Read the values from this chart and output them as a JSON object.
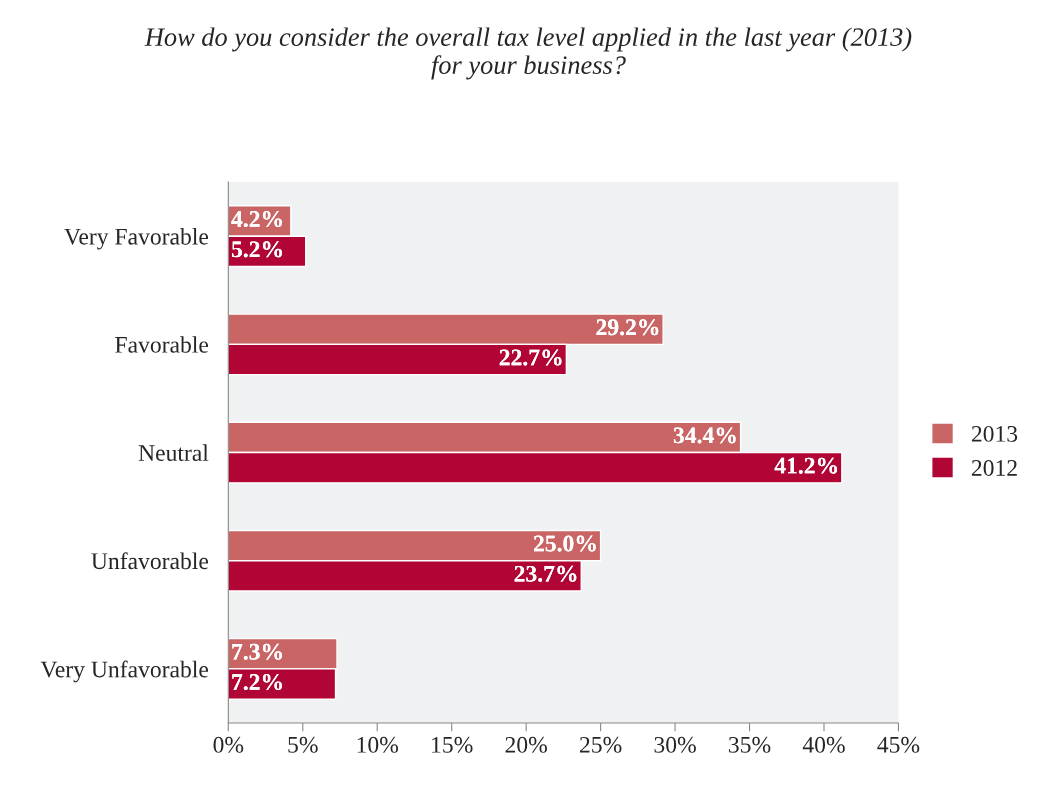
{
  "chart_data": {
    "type": "bar",
    "orientation": "horizontal",
    "title": "How do you consider the overall tax level applied in the last year (2013)\nfor your business?",
    "categories": [
      "Very Favorable",
      "Favorable",
      "Neutral",
      "Unfavorable",
      "Very Unfavorable"
    ],
    "series": [
      {
        "name": "2013",
        "color": "#c96565",
        "values": [
          4.2,
          29.2,
          34.4,
          25.0,
          7.3
        ],
        "value_labels": [
          "4.2%",
          "29.2%",
          "34.4%",
          "25.0%",
          "7.3%"
        ]
      },
      {
        "name": "2012",
        "color": "#b00535",
        "values": [
          5.2,
          22.7,
          41.2,
          23.7,
          7.2
        ],
        "value_labels": [
          "5.2%",
          "22.7%",
          "41.2%",
          "23.7%",
          "7.2%"
        ]
      }
    ],
    "xlim": [
      0,
      45
    ],
    "xticks": [
      {
        "value": 0,
        "label": "0%"
      },
      {
        "value": 5,
        "label": "5%"
      },
      {
        "value": 10,
        "label": "10%"
      },
      {
        "value": 15,
        "label": "15%"
      },
      {
        "value": 20,
        "label": "20%"
      },
      {
        "value": 25,
        "label": "25%"
      },
      {
        "value": 30,
        "label": "30%"
      },
      {
        "value": 35,
        "label": "35%"
      },
      {
        "value": 40,
        "label": "40%"
      },
      {
        "value": 45,
        "label": "45%"
      }
    ],
    "grid": false,
    "legend": "right"
  }
}
